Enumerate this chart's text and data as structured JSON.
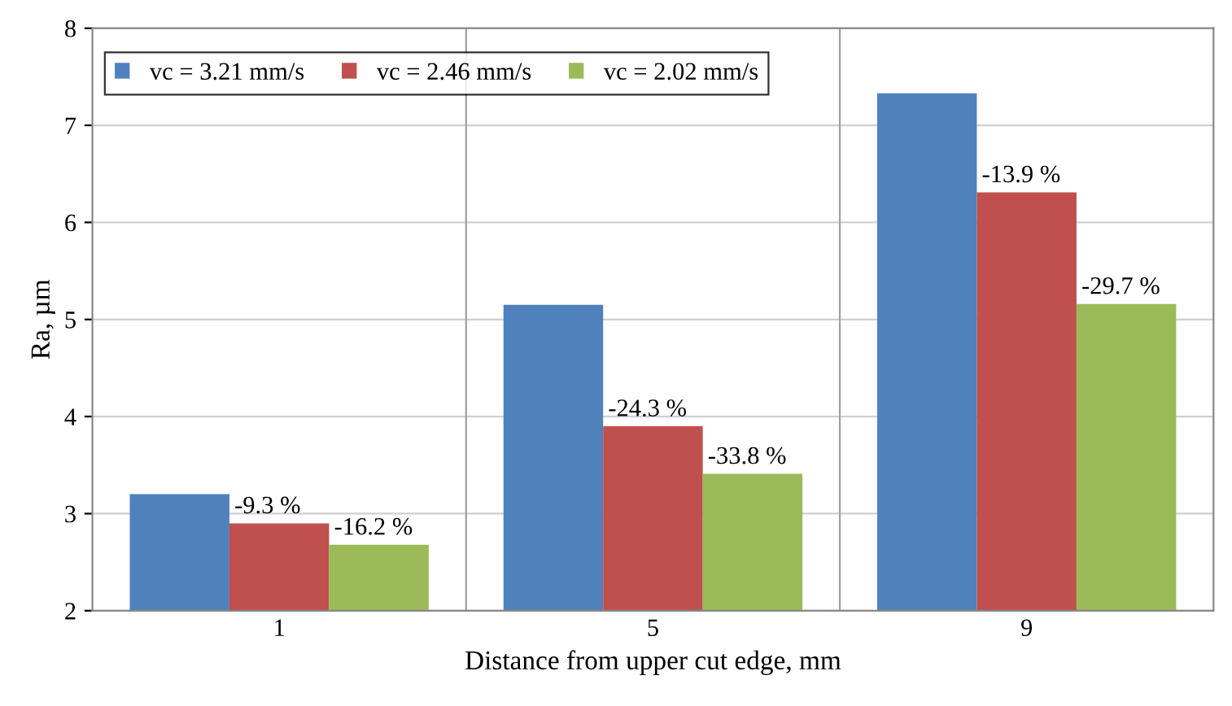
{
  "chart_data": {
    "type": "bar",
    "xlabel": "Distance from upper cut edge, mm",
    "ylabel": "Ra, µm",
    "categories": [
      "1",
      "5",
      "9"
    ],
    "series": [
      {
        "name": "vc = 3.21 mm/s",
        "color": "#4f81bd",
        "values": [
          3.2,
          5.15,
          7.33
        ]
      },
      {
        "name": "vc = 2.46 mm/s",
        "color": "#c0504d",
        "values": [
          2.9,
          3.9,
          6.31
        ]
      },
      {
        "name": "vc = 2.02 mm/s",
        "color": "#9bbb59",
        "values": [
          2.68,
          3.41,
          5.16
        ]
      }
    ],
    "annotations": [
      "-9.3 %",
      "-24.3 %",
      "-13.9 %",
      "-16.2 %",
      "-33.8 %",
      "-29.7 %"
    ],
    "ylim": [
      2,
      8
    ],
    "yticks": [
      2,
      3,
      4,
      5,
      6,
      7,
      8
    ],
    "grid": true,
    "legend": "top left"
  }
}
